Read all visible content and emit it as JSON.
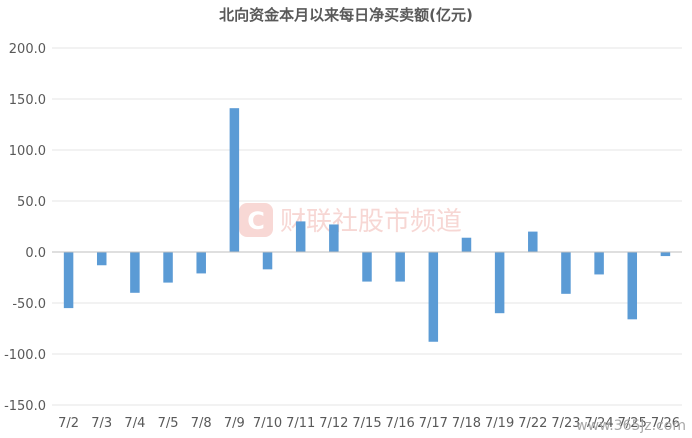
{
  "watermark": {
    "logo_letter": "C",
    "text": "财联社股市频道"
  },
  "site_watermark": "www.365jz.com",
  "chart_data": {
    "type": "bar",
    "title": "北向资金本月以来每日净买卖额(亿元)",
    "xlabel": "",
    "ylabel": "",
    "categories": [
      "7/2",
      "7/3",
      "7/4",
      "7/5",
      "7/8",
      "7/9",
      "7/10",
      "7/11",
      "7/12",
      "7/15",
      "7/16",
      "7/17",
      "7/18",
      "7/19",
      "7/22",
      "7/23",
      "7/24",
      "7/25",
      "7/26"
    ],
    "values": [
      -55,
      -13,
      -40,
      -30,
      -21,
      141,
      -17,
      30,
      27,
      -29,
      -29,
      -88,
      14,
      -60,
      20,
      -41,
      -22,
      -66,
      -4
    ],
    "ylim": [
      -150,
      200
    ],
    "yticks": [
      200,
      150,
      100,
      50,
      0,
      -50,
      -100,
      -150
    ],
    "ytick_labels": [
      "200.0",
      "150.0",
      "100.0",
      "50.0",
      "0.0",
      "-50.0",
      "-100.0",
      "-150.0"
    ],
    "grid": true,
    "bar_color": "#5b9bd5",
    "grid_color": "#e6e6e6",
    "axis_color": "#bfbfbf"
  }
}
